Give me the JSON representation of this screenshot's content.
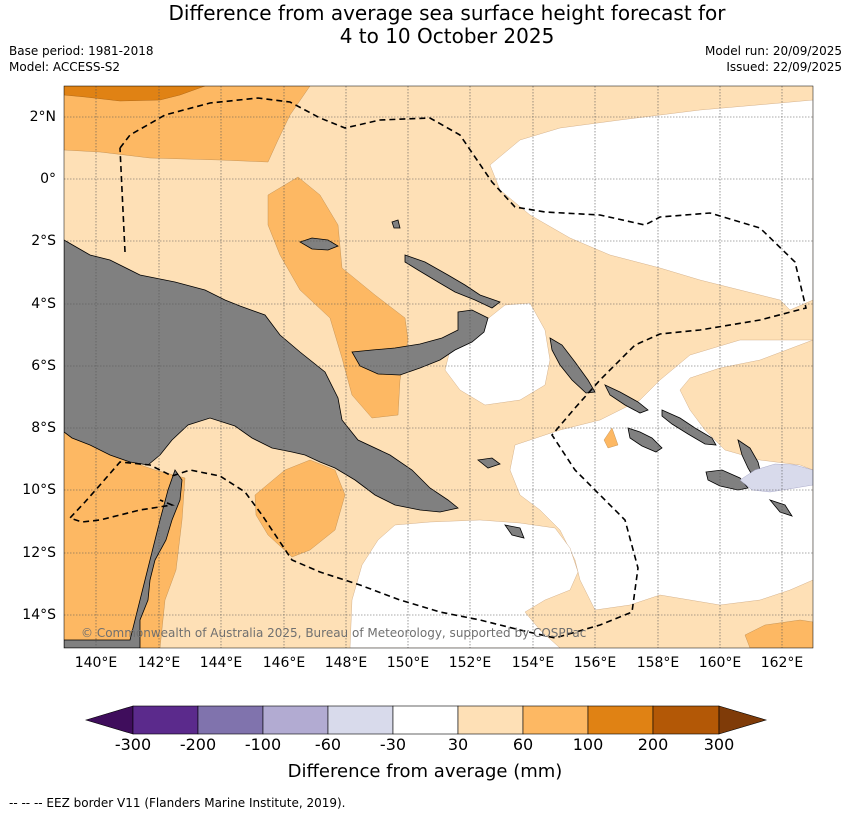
{
  "title": {
    "line1": "Difference from average sea surface height forecast for",
    "line2": "4 to 10 October 2025"
  },
  "meta_left": {
    "base_period": "Base period: 1981-2018",
    "model": "Model: ACCESS-S2"
  },
  "meta_right": {
    "model_run": "Model run: 20/09/2025",
    "issued": "Issued: 22/09/2025"
  },
  "map": {
    "lat_labels": [
      "2°N",
      "0°",
      "2°S",
      "4°S",
      "6°S",
      "8°S",
      "10°S",
      "12°S",
      "14°S"
    ],
    "lon_labels": [
      "140°E",
      "142°E",
      "144°E",
      "146°E",
      "148°E",
      "150°E",
      "152°E",
      "154°E",
      "156°E",
      "158°E",
      "160°E",
      "162°E"
    ],
    "copyright": "© Commonwealth of Australia 2025, Bureau of Meteorology, supported by COSPPac",
    "land_color": "#808080"
  },
  "colorbar": {
    "ticks": [
      "-300",
      "-200",
      "-100",
      "-60",
      "-30",
      "30",
      "60",
      "100",
      "200",
      "300"
    ],
    "colors": [
      "#3f0d5c",
      "#5b2a8c",
      "#8073ad",
      "#b2abd2",
      "#d8daeb",
      "#ffffff",
      "#fee0b6",
      "#fdb863",
      "#e08214",
      "#b35806",
      "#7f3b08"
    ],
    "label": "Difference from average (mm)"
  },
  "footnote": "--  --  -- EEZ border V11 (Flanders Marine Institute, 2019)."
}
